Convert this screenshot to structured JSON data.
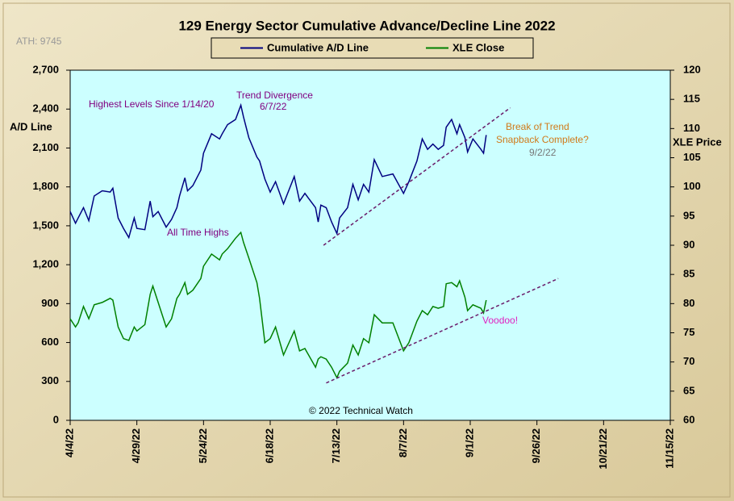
{
  "chart_data": {
    "type": "line",
    "title": "129 Energy Sector Cumulative Advance/Decline Line 2022",
    "ylabel": "A/D Line",
    "y2label": "XLE Price",
    "annotations": [
      "ATH: 9745",
      "Highest Levels Since 1/14/20",
      "Trend Divergence",
      "6/7/22",
      "All Time Highs",
      "Break of Trend",
      "Snapback Complete?",
      "9/2/22",
      "Voodoo!",
      "© 2022 Technical Watch"
    ],
    "x": [
      "2022-04-04",
      "2022-04-06",
      "2022-04-07",
      "2022-04-09",
      "2022-04-11",
      "2022-04-13",
      "2022-04-16",
      "2022-04-19",
      "2022-04-20",
      "2022-04-22",
      "2022-04-24",
      "2022-04-26",
      "2022-04-28",
      "2022-04-29",
      "2022-05-02",
      "2022-05-04",
      "2022-05-05",
      "2022-05-07",
      "2022-05-10",
      "2022-05-12",
      "2022-05-14",
      "2022-05-15",
      "2022-05-17",
      "2022-05-18",
      "2022-05-20",
      "2022-05-23",
      "2022-05-24",
      "2022-05-27",
      "2022-05-30",
      "2022-05-31",
      "2022-06-02",
      "2022-06-05",
      "2022-06-07",
      "2022-06-08",
      "2022-06-10",
      "2022-06-13",
      "2022-06-14",
      "2022-06-16",
      "2022-06-18",
      "2022-06-20",
      "2022-06-23",
      "2022-06-27",
      "2022-06-29",
      "2022-07-01",
      "2022-07-05",
      "2022-07-06",
      "2022-07-07",
      "2022-07-09",
      "2022-07-11",
      "2022-07-13",
      "2022-07-14",
      "2022-07-17",
      "2022-07-19",
      "2022-07-21",
      "2022-07-23",
      "2022-07-25",
      "2022-07-27",
      "2022-07-30",
      "2022-08-03",
      "2022-08-07",
      "2022-08-09",
      "2022-08-12",
      "2022-08-14",
      "2022-08-16",
      "2022-08-18",
      "2022-08-20",
      "2022-08-22",
      "2022-08-23",
      "2022-08-25",
      "2022-08-27",
      "2022-08-28",
      "2022-08-30",
      "2022-08-31",
      "2022-09-02",
      "2022-09-05",
      "2022-09-06",
      "2022-09-07"
    ],
    "series": [
      {
        "name": "Cumulative A/D Line",
        "color": "#000080",
        "axis": "y",
        "values": [
          1610,
          1520,
          1560,
          1640,
          1540,
          1730,
          1770,
          1760,
          1790,
          1560,
          1480,
          1410,
          1560,
          1480,
          1470,
          1690,
          1570,
          1610,
          1490,
          1550,
          1640,
          1730,
          1870,
          1770,
          1810,
          1930,
          2060,
          2210,
          2170,
          2210,
          2280,
          2320,
          2430,
          2340,
          2180,
          2030,
          2000,
          1860,
          1760,
          1840,
          1670,
          1880,
          1690,
          1750,
          1640,
          1530,
          1660,
          1640,
          1530,
          1440,
          1560,
          1640,
          1820,
          1700,
          1820,
          1760,
          2010,
          1880,
          1900,
          1750,
          1840,
          2000,
          2170,
          2090,
          2130,
          2090,
          2120,
          2260,
          2320,
          2210,
          2280,
          2180,
          2070,
          2170,
          2090,
          2060,
          2200
        ]
      },
      {
        "name": "XLE Close",
        "color": "#008000",
        "axis": "y2",
        "values": [
          77.4,
          76.0,
          76.7,
          79.5,
          77.4,
          79.8,
          80.2,
          80.9,
          80.6,
          76.0,
          74.0,
          73.7,
          76.0,
          75.3,
          76.4,
          81.6,
          83.0,
          80.2,
          76.0,
          77.4,
          80.9,
          81.6,
          83.6,
          81.6,
          82.3,
          84.3,
          86.4,
          88.5,
          87.5,
          88.5,
          89.4,
          91.2,
          92.2,
          90.5,
          87.8,
          83.6,
          80.9,
          73.3,
          74.0,
          76.0,
          71.2,
          75.3,
          71.9,
          72.3,
          69.1,
          70.5,
          70.9,
          70.5,
          69.1,
          67.3,
          68.4,
          69.8,
          72.9,
          71.2,
          74.0,
          73.3,
          78.1,
          76.7,
          76.7,
          71.9,
          73.3,
          77.0,
          78.8,
          78.1,
          79.5,
          79.2,
          79.5,
          83.4,
          83.6,
          82.9,
          83.9,
          81.1,
          78.8,
          79.8,
          79.2,
          78.4,
          80.6
        ]
      }
    ],
    "trendlines": [
      {
        "axis": "y",
        "color": "#6a1b6a",
        "x": [
          "2022-07-08",
          "2022-09-16"
        ],
        "values": [
          1350,
          2410
        ]
      },
      {
        "axis": "y2",
        "color": "#6a1b6a",
        "x": [
          "2022-07-09",
          "2022-10-04"
        ],
        "values": [
          66.4,
          84.3
        ]
      }
    ],
    "xlim": [
      "2022-04-04",
      "2022-11-15"
    ],
    "xticks": [
      {
        "value": "2022-04-04",
        "label": "4/4/22"
      },
      {
        "value": "2022-04-29",
        "label": "4/29/22"
      },
      {
        "value": "2022-05-24",
        "label": "5/24/22"
      },
      {
        "value": "2022-06-18",
        "label": "6/18/22"
      },
      {
        "value": "2022-07-13",
        "label": "7/13/22"
      },
      {
        "value": "2022-08-07",
        "label": "8/7/22"
      },
      {
        "value": "2022-09-01",
        "label": "9/1/22"
      },
      {
        "value": "2022-09-26",
        "label": "9/26/22"
      },
      {
        "value": "2022-10-21",
        "label": "10/21/22"
      },
      {
        "value": "2022-11-15",
        "label": "11/15/22"
      }
    ],
    "ylim": [
      0,
      2700
    ],
    "yticks": [
      0,
      300,
      600,
      900,
      {
        "value": 1200,
        "label": "1,200"
      },
      {
        "value": 1500,
        "label": "1,500"
      },
      {
        "value": 1800,
        "label": "1,800"
      },
      {
        "value": 2100,
        "label": "2,100"
      },
      {
        "value": 2400,
        "label": "2,400"
      },
      {
        "value": 2700,
        "label": "2,700"
      }
    ],
    "y2lim": [
      60,
      120
    ],
    "y2ticks": [
      60,
      65,
      70,
      75,
      80,
      85,
      90,
      95,
      100,
      105,
      110,
      115,
      120
    ],
    "grid": false,
    "legend": "top"
  }
}
